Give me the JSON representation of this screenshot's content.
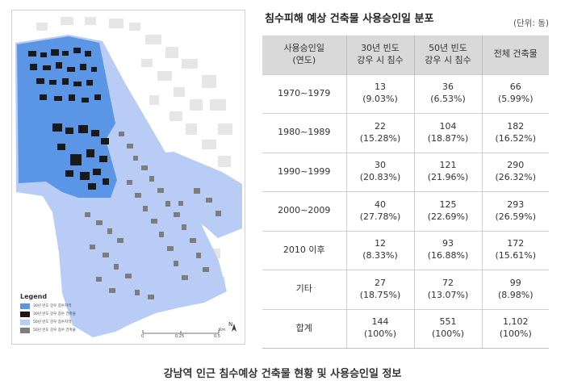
{
  "table": {
    "title": "침수피해 예상 건축물 사용승인일 분포",
    "unit_note": "(단위: 동)",
    "headers": [
      {
        "line1": "사용승인일",
        "line2": "(연도)"
      },
      {
        "line1": "30년 빈도",
        "line2": "강우 시 침수"
      },
      {
        "line1": "50년 빈도",
        "line2": "강우 시 침수"
      },
      {
        "line1": "전체 건축물",
        "line2": ""
      }
    ],
    "rows": [
      {
        "label": "1970~1979",
        "c30": "13",
        "p30": "(9.03%)",
        "c50": "36",
        "p50": "(6.53%)",
        "total": "66",
        "ptotal": "(5.99%)"
      },
      {
        "label": "1980~1989",
        "c30": "22",
        "p30": "(15.28%)",
        "c50": "104",
        "p50": "(18.87%)",
        "total": "182",
        "ptotal": "(16.52%)"
      },
      {
        "label": "1990~1999",
        "c30": "30",
        "p30": "(20.83%)",
        "c50": "121",
        "p50": "(21.96%)",
        "total": "290",
        "ptotal": "(26.32%)"
      },
      {
        "label": "2000~2009",
        "c30": "40",
        "p30": "(27.78%)",
        "c50": "125",
        "p50": "(22.69%)",
        "total": "293",
        "ptotal": "(26.59%)"
      },
      {
        "label": "2010 이후",
        "c30": "12",
        "p30": "(8.33%)",
        "c50": "93",
        "p50": "(16.88%)",
        "total": "172",
        "ptotal": "(15.61%)"
      },
      {
        "label": "기타",
        "c30": "27",
        "p30": "(18.75%)",
        "c50": "72",
        "p50": "(13.07%)",
        "total": "99",
        "ptotal": "(8.98%)"
      },
      {
        "label": "합계",
        "c30": "144",
        "p30": "(100%)",
        "c50": "551",
        "p50": "(100%)",
        "total": "1,102",
        "ptotal": "(100%)"
      }
    ]
  },
  "map": {
    "legend_title": "Legend",
    "legend_items": [
      {
        "label": "30년 빈도 강우 침수지역",
        "color": "#5a95e6"
      },
      {
        "label": "30년 빈도 강우 침수 건축물",
        "color": "#1a1a1a"
      },
      {
        "label": "50년 빈도 강우 침수지역",
        "color": "#b9ccf5"
      },
      {
        "label": "50년 빈도 강우 침수 건축물",
        "color": "#7d7d7d"
      }
    ],
    "scale_ticks": [
      "0",
      "0.25",
      "0.5"
    ],
    "scale_unit": "Km",
    "north_label": "N"
  },
  "caption": "강남역 인근 침수예상 건축물 현황 및 사용승인일 정보"
}
